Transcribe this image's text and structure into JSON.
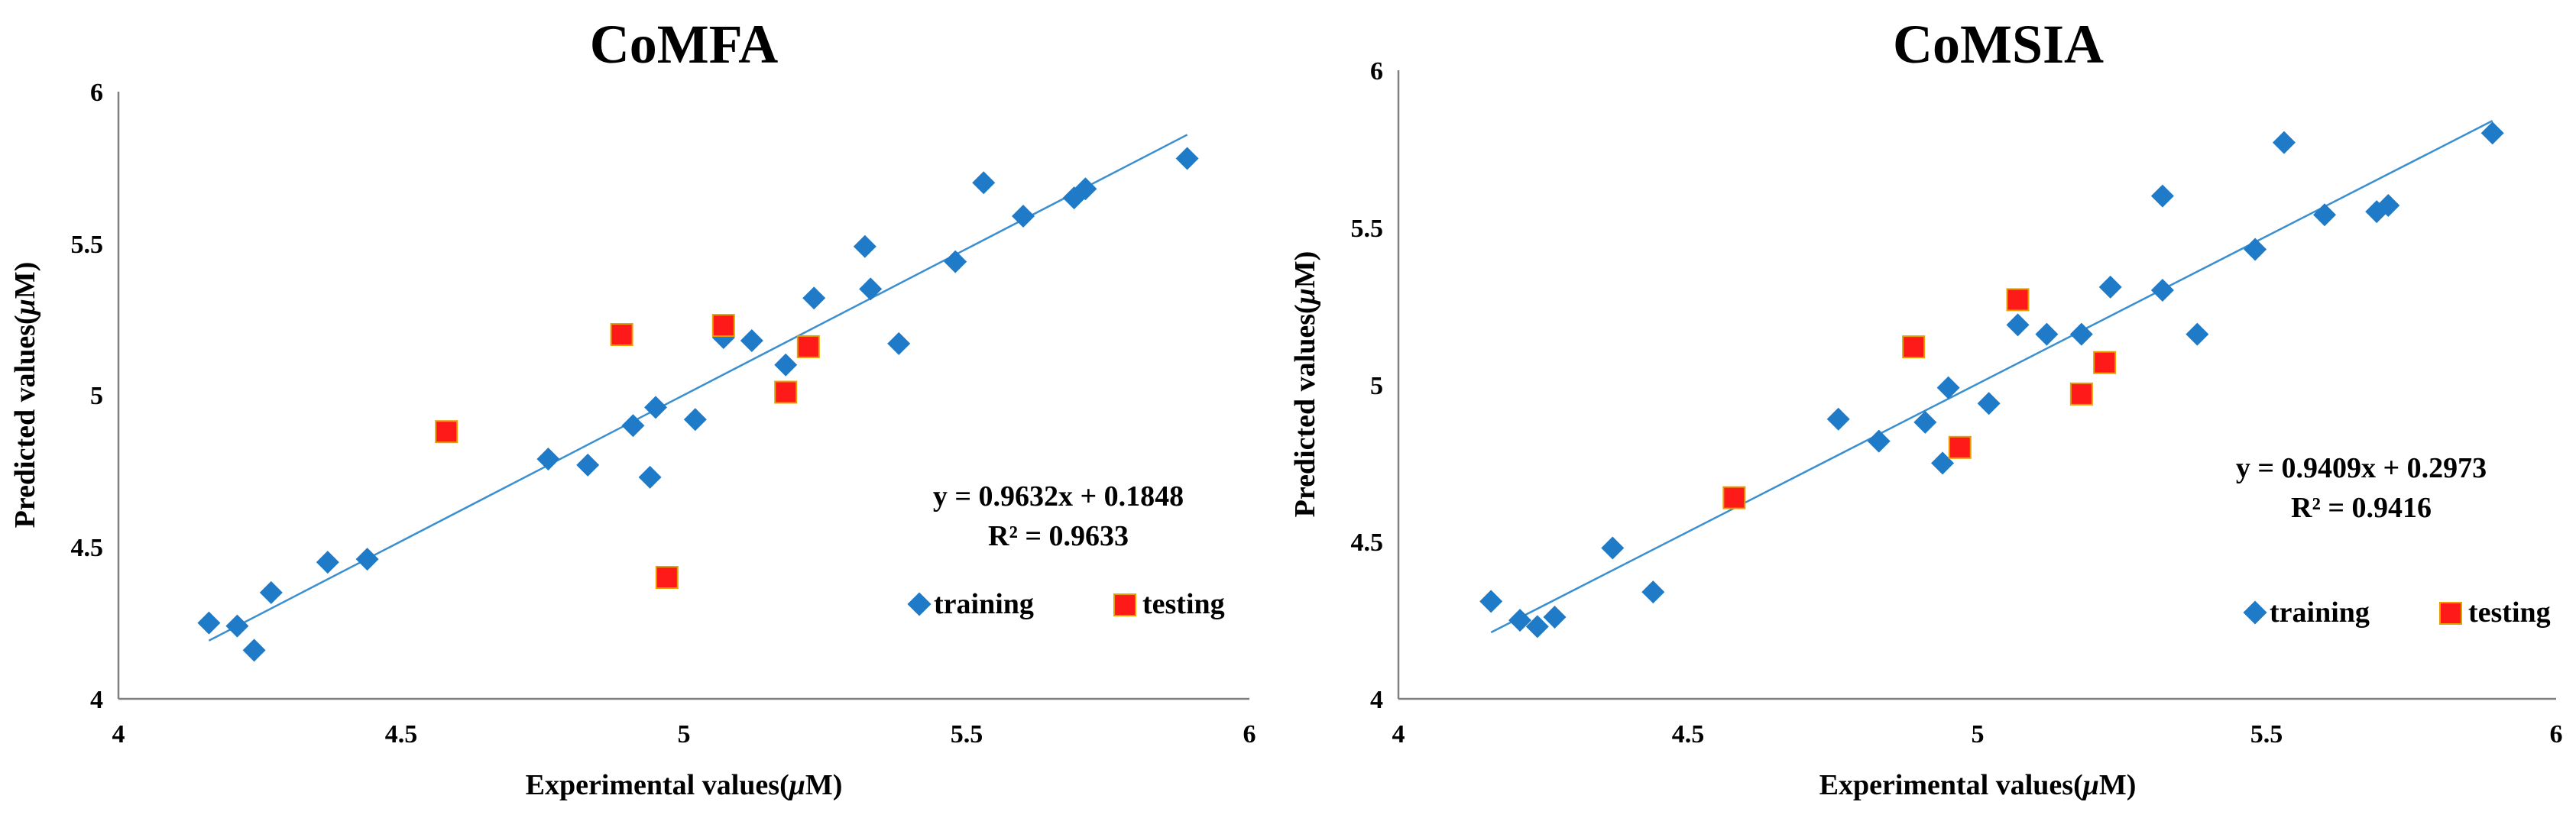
{
  "chart_data": [
    {
      "type": "scatter",
      "title": "CoMFA",
      "xlabel": "Experimental values(",
      "ylabel": "Predicted values(",
      "unit_symbol": "μ",
      "unit_suffix": "M)",
      "xlim": [
        4,
        6
      ],
      "ylim": [
        4,
        6
      ],
      "xticks": [
        "4",
        "4.5",
        "5",
        "5.5",
        "6"
      ],
      "yticks": [
        "4",
        "4.5",
        "5",
        "5.5",
        "6"
      ],
      "equation": "y = 0.9632x + 0.1848",
      "r2": "R² = 0.9633",
      "trendline": {
        "slope": 0.9632,
        "intercept": 0.1848,
        "x_range": [
          4.16,
          5.89
        ]
      },
      "series": [
        {
          "name": "training",
          "marker": "diamond",
          "color": "#1f7bc8",
          "points": [
            [
              4.16,
              4.25
            ],
            [
              4.21,
              4.24
            ],
            [
              4.24,
              4.16
            ],
            [
              4.27,
              4.35
            ],
            [
              4.37,
              4.45
            ],
            [
              4.44,
              4.46
            ],
            [
              4.76,
              4.79
            ],
            [
              4.83,
              4.77
            ],
            [
              4.91,
              4.9
            ],
            [
              4.94,
              4.73
            ],
            [
              4.95,
              4.96
            ],
            [
              5.02,
              4.92
            ],
            [
              5.07,
              5.19
            ],
            [
              5.12,
              5.18
            ],
            [
              5.18,
              5.1
            ],
            [
              5.23,
              5.32
            ],
            [
              5.32,
              5.49
            ],
            [
              5.33,
              5.35
            ],
            [
              5.38,
              5.17
            ],
            [
              5.48,
              5.44
            ],
            [
              5.53,
              5.7
            ],
            [
              5.6,
              5.59
            ],
            [
              5.69,
              5.65
            ],
            [
              5.71,
              5.68
            ],
            [
              5.89,
              5.78
            ]
          ]
        },
        {
          "name": "testing",
          "marker": "square",
          "color": "#ff1a1a",
          "points": [
            [
              4.58,
              4.88
            ],
            [
              4.89,
              5.2
            ],
            [
              4.97,
              4.4
            ],
            [
              5.07,
              5.23
            ],
            [
              5.18,
              5.01
            ],
            [
              5.22,
              5.16
            ]
          ]
        }
      ]
    },
    {
      "type": "scatter",
      "title": "CoMSIA",
      "xlabel": "Experimental values(",
      "ylabel": "Predicted values(",
      "unit_symbol": "μ",
      "unit_suffix": "M)",
      "xlim": [
        4,
        6
      ],
      "ylim": [
        4,
        6
      ],
      "xticks": [
        "4",
        "4.5",
        "5",
        "5.5",
        "6"
      ],
      "yticks": [
        "4",
        "4.5",
        "5",
        "5.5",
        "6"
      ],
      "equation": "y = 0.9409x + 0.2973",
      "r2": "R² = 0.9416",
      "trendline": {
        "slope": 0.9409,
        "intercept": 0.2973,
        "x_range": [
          4.16,
          5.89
        ]
      },
      "series": [
        {
          "name": "training",
          "marker": "diamond",
          "color": "#1f7bc8",
          "points": [
            [
              4.16,
              4.31
            ],
            [
              4.21,
              4.25
            ],
            [
              4.24,
              4.23
            ],
            [
              4.27,
              4.26
            ],
            [
              4.37,
              4.48
            ],
            [
              4.44,
              4.34
            ],
            [
              4.76,
              4.89
            ],
            [
              4.83,
              4.82
            ],
            [
              4.91,
              4.88
            ],
            [
              4.94,
              4.75
            ],
            [
              4.95,
              4.99
            ],
            [
              5.02,
              4.94
            ],
            [
              5.07,
              5.19
            ],
            [
              5.12,
              5.16
            ],
            [
              5.18,
              5.16
            ],
            [
              5.23,
              5.31
            ],
            [
              5.32,
              5.6
            ],
            [
              5.32,
              5.3
            ],
            [
              5.38,
              5.16
            ],
            [
              5.48,
              5.43
            ],
            [
              5.53,
              5.77
            ],
            [
              5.6,
              5.54
            ],
            [
              5.69,
              5.55
            ],
            [
              5.71,
              5.57
            ],
            [
              5.89,
              5.8
            ]
          ]
        },
        {
          "name": "testing",
          "marker": "square",
          "color": "#ff1a1a",
          "points": [
            [
              4.58,
              4.64
            ],
            [
              4.89,
              5.12
            ],
            [
              4.97,
              4.8
            ],
            [
              5.07,
              5.27
            ],
            [
              5.18,
              4.97
            ],
            [
              5.22,
              5.07
            ]
          ]
        }
      ]
    }
  ],
  "colors": {
    "trendline": "#3a8fd0",
    "axis": "#808080"
  }
}
